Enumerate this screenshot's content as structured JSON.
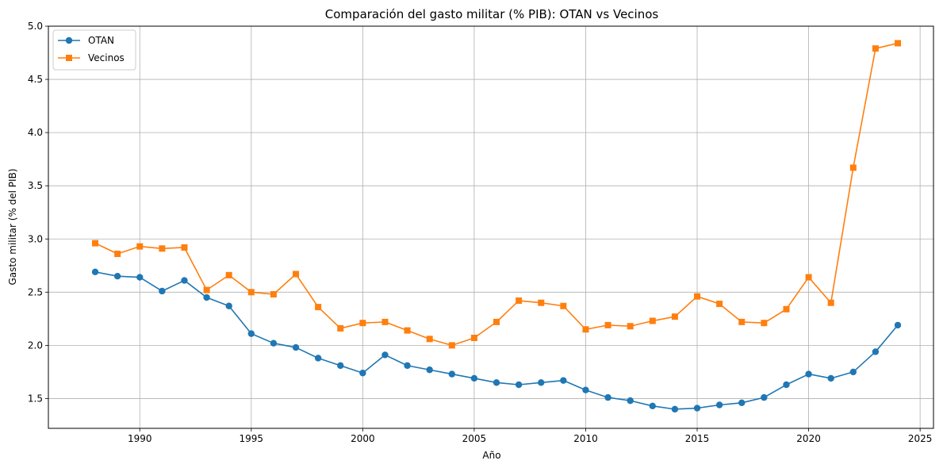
{
  "chart_data": {
    "type": "line",
    "title": "Comparación del gasto militar (% PIB): OTAN vs Vecinos",
    "xlabel": "Año",
    "ylabel": "Gasto militar (% del PIB)",
    "xlim": [
      1985.9,
      2025.6
    ],
    "ylim": [
      1.22,
      5.0
    ],
    "xticks": [
      1990,
      1995,
      2000,
      2005,
      2010,
      2015,
      2020,
      2025
    ],
    "yticks": [
      1.5,
      2.0,
      2.5,
      3.0,
      3.5,
      4.0,
      4.5,
      5.0
    ],
    "grid": true,
    "legend_position": "upper-left",
    "x": [
      1988,
      1989,
      1990,
      1991,
      1992,
      1993,
      1994,
      1995,
      1996,
      1997,
      1998,
      1999,
      2000,
      2001,
      2002,
      2003,
      2004,
      2005,
      2006,
      2007,
      2008,
      2009,
      2010,
      2011,
      2012,
      2013,
      2014,
      2015,
      2016,
      2017,
      2018,
      2019,
      2020,
      2021,
      2022,
      2023,
      2024
    ],
    "series": [
      {
        "name": "OTAN",
        "color": "#1f77b4",
        "marker": "circle",
        "values": [
          2.69,
          2.65,
          2.64,
          2.51,
          2.61,
          2.45,
          2.37,
          2.11,
          2.02,
          1.98,
          1.88,
          1.81,
          1.74,
          1.91,
          1.81,
          1.77,
          1.73,
          1.69,
          1.65,
          1.63,
          1.65,
          1.67,
          1.58,
          1.51,
          1.48,
          1.43,
          1.4,
          1.41,
          1.44,
          1.46,
          1.51,
          1.63,
          1.73,
          1.69,
          1.75,
          1.94,
          2.19
        ]
      },
      {
        "name": "Vecinos",
        "color": "#ff7f0e",
        "marker": "square",
        "values": [
          2.96,
          2.86,
          2.93,
          2.91,
          2.92,
          2.52,
          2.66,
          2.5,
          2.48,
          2.67,
          2.36,
          2.16,
          2.21,
          2.22,
          2.14,
          2.06,
          2.0,
          2.07,
          2.22,
          2.42,
          2.4,
          2.37,
          2.15,
          2.19,
          2.18,
          2.23,
          2.27,
          2.46,
          2.39,
          2.22,
          2.21,
          2.34,
          2.64,
          2.4,
          3.67,
          4.79,
          4.84
        ]
      }
    ]
  }
}
